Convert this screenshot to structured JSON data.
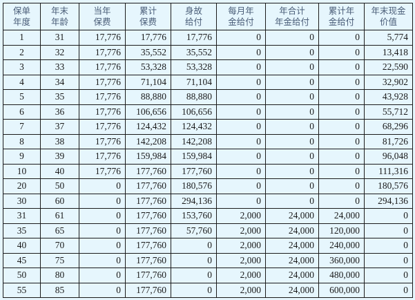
{
  "table": {
    "headers": [
      [
        "保单",
        "年度"
      ],
      [
        "年末",
        "年龄"
      ],
      [
        "当年",
        "保费"
      ],
      [
        "累计",
        "保费"
      ],
      [
        "身故",
        "给付"
      ],
      [
        "每月年",
        "金给付"
      ],
      [
        "年合计",
        "年金给付"
      ],
      [
        "累计年",
        "金给付"
      ],
      [
        "年末现金",
        "价值"
      ]
    ],
    "rows": [
      [
        "1",
        "31",
        "17,776",
        "17,776",
        "17,776",
        "0",
        "0",
        "0",
        "5,774"
      ],
      [
        "2",
        "32",
        "17,776",
        "35,552",
        "35,552",
        "0",
        "0",
        "0",
        "13,418"
      ],
      [
        "3",
        "33",
        "17,776",
        "53,328",
        "53,328",
        "0",
        "0",
        "0",
        "22,590"
      ],
      [
        "4",
        "34",
        "17,776",
        "71,104",
        "71,104",
        "0",
        "0",
        "0",
        "32,902"
      ],
      [
        "5",
        "35",
        "17,776",
        "88,880",
        "88,880",
        "0",
        "0",
        "0",
        "43,928"
      ],
      [
        "6",
        "36",
        "17,776",
        "106,656",
        "106,656",
        "0",
        "0",
        "0",
        "55,712"
      ],
      [
        "7",
        "37",
        "17,776",
        "124,432",
        "124,432",
        "0",
        "0",
        "0",
        "68,296"
      ],
      [
        "8",
        "38",
        "17,776",
        "142,208",
        "142,208",
        "0",
        "0",
        "0",
        "81,726"
      ],
      [
        "9",
        "39",
        "17,776",
        "159,984",
        "159,984",
        "0",
        "0",
        "0",
        "96,048"
      ],
      [
        "10",
        "40",
        "17,776",
        "177,760",
        "177,760",
        "0",
        "0",
        "0",
        "111,316"
      ],
      [
        "20",
        "50",
        "0",
        "177,760",
        "180,576",
        "0",
        "0",
        "0",
        "180,576"
      ],
      [
        "30",
        "60",
        "0",
        "177,760",
        "294,136",
        "0",
        "0",
        "0",
        "294,136"
      ],
      [
        "31",
        "61",
        "0",
        "177,760",
        "153,760",
        "2,000",
        "24,000",
        "24,000",
        "0"
      ],
      [
        "35",
        "65",
        "0",
        "177,760",
        "57,760",
        "2,000",
        "24,000",
        "120,000",
        "0"
      ],
      [
        "40",
        "70",
        "0",
        "177,760",
        "0",
        "2,000",
        "24,000",
        "240,000",
        "0"
      ],
      [
        "45",
        "75",
        "0",
        "177,760",
        "0",
        "2,000",
        "24,000",
        "360,000",
        "0"
      ],
      [
        "50",
        "80",
        "0",
        "177,760",
        "0",
        "2,000",
        "24,000",
        "480,000",
        "0"
      ],
      [
        "55",
        "85",
        "0",
        "177,760",
        "0",
        "2,000",
        "24,000",
        "600,000",
        "0"
      ]
    ]
  }
}
